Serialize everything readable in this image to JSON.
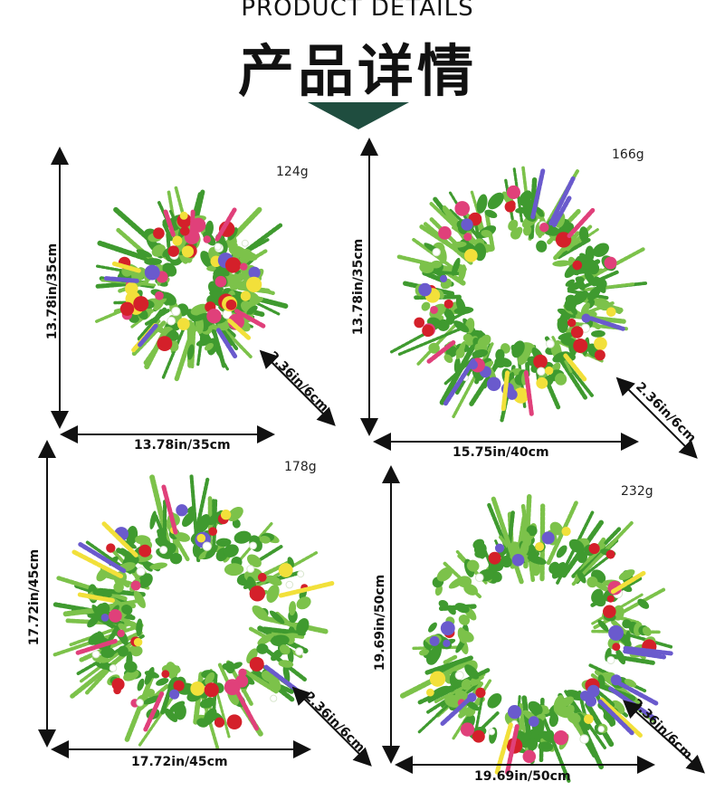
{
  "header": {
    "title_en": "PRODUCT DETAILS",
    "title_cn": "产品详情",
    "accent_color": "#1f4d3f"
  },
  "products": [
    {
      "weight": "124g",
      "height_label": "13.78in/35cm",
      "width_label": "13.78in/35cm",
      "depth_label": "2.36in/6cm"
    },
    {
      "weight": "166g",
      "height_label": "13.78in/35cm",
      "width_label": "15.75in/40cm",
      "depth_label": "2.36in/6cm"
    },
    {
      "weight": "178g",
      "height_label": "17.72in/45cm",
      "width_label": "17.72in/45cm",
      "depth_label": "2.36in/6cm"
    },
    {
      "weight": "232g",
      "height_label": "19.69in/50cm",
      "width_label": "19.69in/50cm",
      "depth_label": "2.36in/6cm"
    }
  ],
  "colors": {
    "leaf": "#3f9a2f",
    "leaf_light": "#7cc24a",
    "flower_red": "#d4202a",
    "flower_pink": "#e0407a",
    "flower_yellow": "#f2e03a",
    "flower_purple": "#6a5acd",
    "flower_white": "#ffffff"
  }
}
